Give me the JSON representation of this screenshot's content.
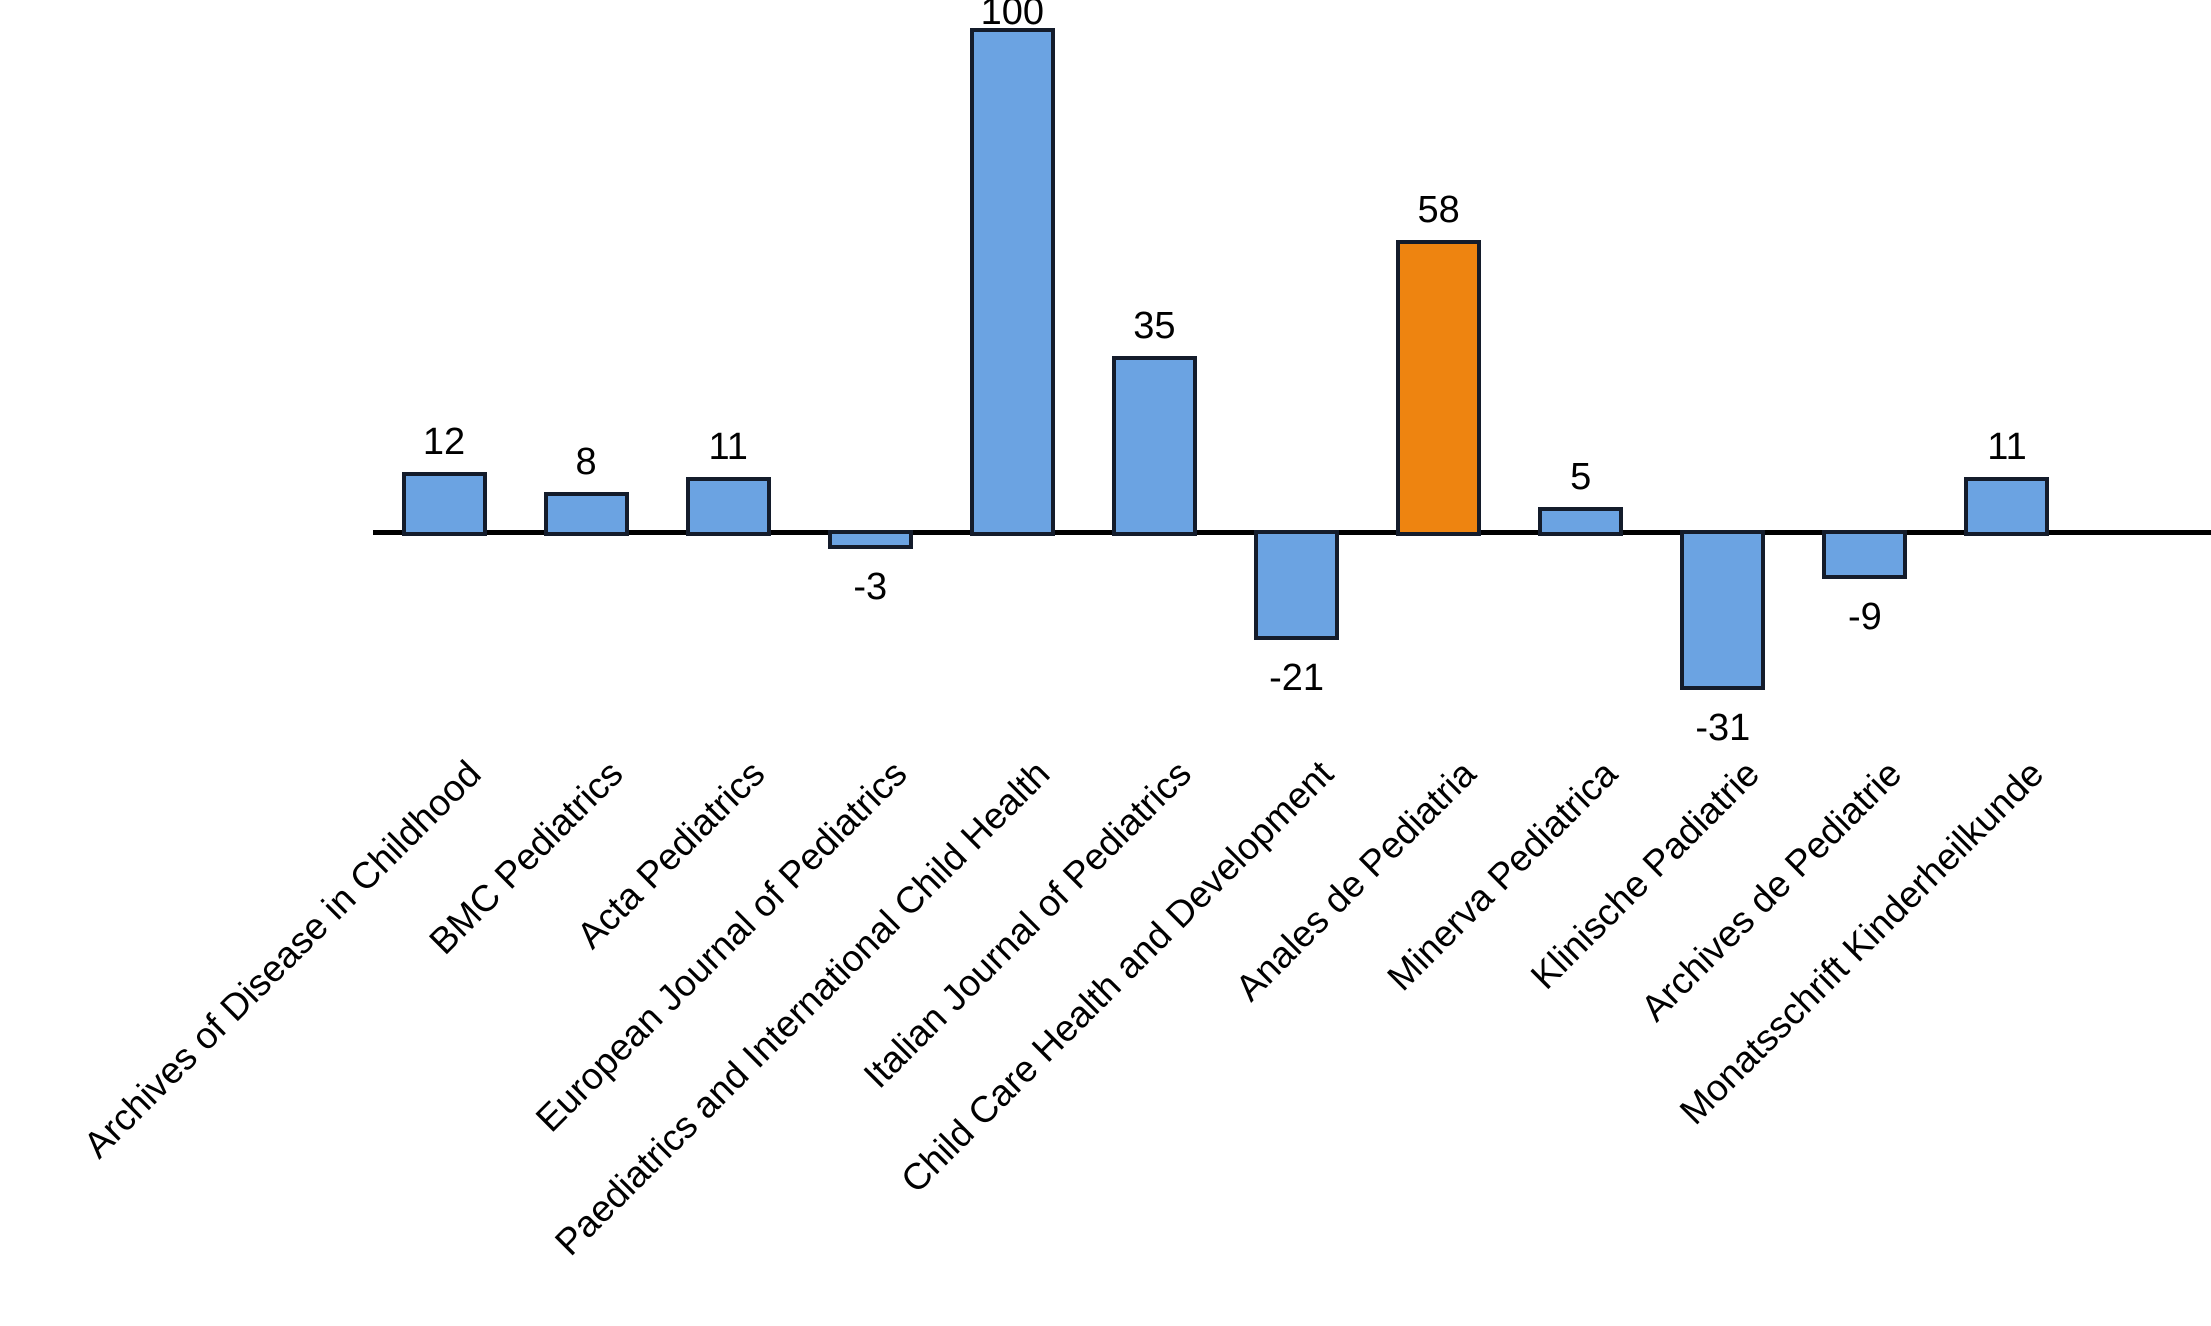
{
  "chart_data": {
    "type": "bar",
    "title": "",
    "xlabel": "",
    "ylabel": "",
    "grid": false,
    "legend": "none",
    "baseline": 0,
    "ylim": [
      -31,
      100
    ],
    "data_labels_visible": true,
    "categories": [
      "Archives of Disease in Childhood",
      "BMC Pediatrics",
      "Acta Pediatrics",
      "European Journal of Pediatrics",
      "Paediatrics and International Child Health",
      "Italian Journal of Pediatrics",
      "Child Care Health and Development",
      "Anales de Pediatria",
      "Minerva Pediatrica",
      "Klinische Padiatrie",
      "Archives de Pediatrie",
      "Monatsschrift Kinderheilkunde"
    ],
    "values": [
      12,
      8,
      11,
      -3,
      100,
      35,
      -21,
      58,
      5,
      -31,
      -9,
      11
    ],
    "value_labels": [
      "12",
      "8",
      "11",
      "-3",
      "100",
      "35",
      "-21",
      "58",
      "5",
      "-31",
      "-9",
      "11"
    ],
    "highlight_index": 7,
    "colors": {
      "bar_fill": "#6BA3E2",
      "highlight_fill": "#EE8410",
      "bar_border": "#141c2b",
      "axis": "#000000",
      "text": "#000000",
      "background": "#ffffff"
    }
  }
}
